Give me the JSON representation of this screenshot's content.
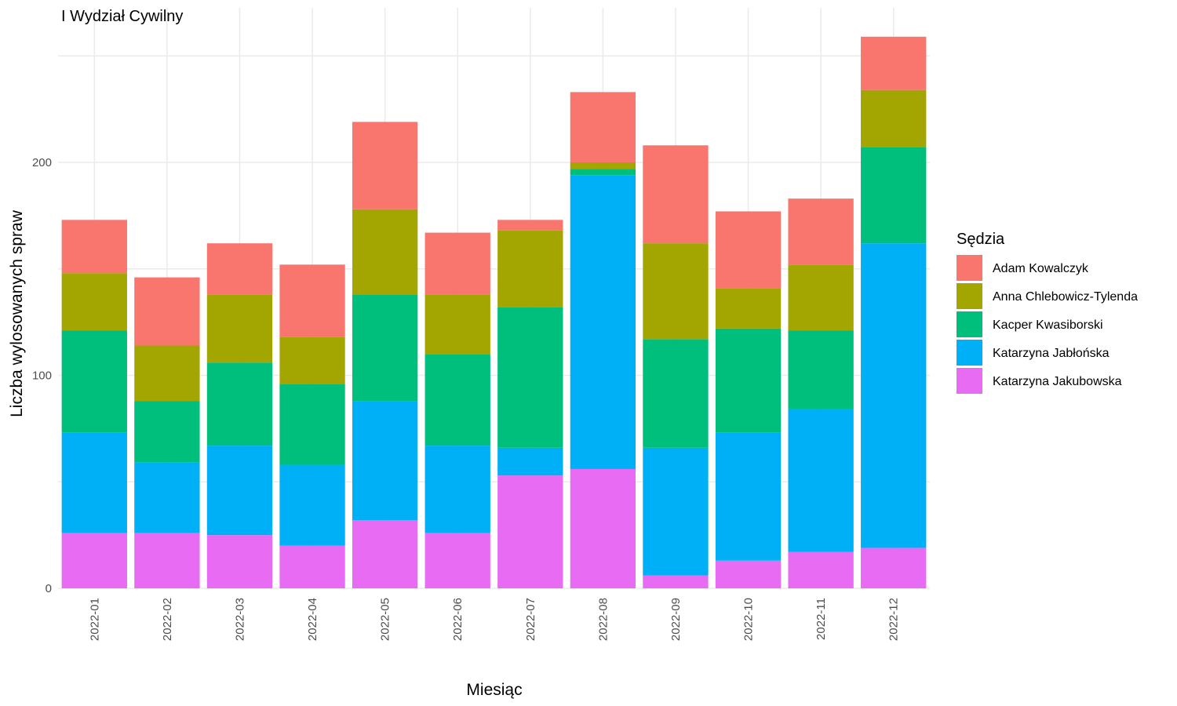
{
  "chart_data": {
    "type": "bar",
    "stacked": true,
    "title": "I Wydział Cywilny",
    "xlabel": "Miesiąc",
    "ylabel": "Liczba wylosowanych spraw",
    "ylim": [
      0,
      260
    ],
    "yticks": [
      0,
      100,
      200
    ],
    "grid": true,
    "legend_title": "Sędzia",
    "legend_position": "right",
    "categories": [
      "2022-01",
      "2022-02",
      "2022-03",
      "2022-04",
      "2022-05",
      "2022-06",
      "2022-07",
      "2022-08",
      "2022-09",
      "2022-10",
      "2022-11",
      "2022-12"
    ],
    "series": [
      {
        "name": "Adam Kowalczyk",
        "color": "#F8766D",
        "values": [
          25,
          32,
          24,
          34,
          41,
          29,
          5,
          33,
          46,
          36,
          31,
          25
        ]
      },
      {
        "name": "Anna Chlebowicz-Tylenda",
        "color": "#A3A500",
        "values": [
          27,
          26,
          32,
          22,
          40,
          28,
          36,
          3,
          45,
          19,
          31,
          27
        ]
      },
      {
        "name": "Kacper Kwasiborski",
        "color": "#00BF7D",
        "values": [
          48,
          29,
          39,
          38,
          50,
          43,
          66,
          3,
          51,
          49,
          37,
          45
        ]
      },
      {
        "name": "Katarzyna Jabłońska",
        "color": "#00B0F6",
        "values": [
          47,
          33,
          42,
          38,
          56,
          41,
          13,
          138,
          60,
          60,
          67,
          143
        ]
      },
      {
        "name": "Katarzyna Jakubowska",
        "color": "#E76BF3",
        "values": [
          26,
          26,
          25,
          20,
          32,
          26,
          53,
          56,
          6,
          13,
          17,
          19
        ]
      }
    ]
  }
}
